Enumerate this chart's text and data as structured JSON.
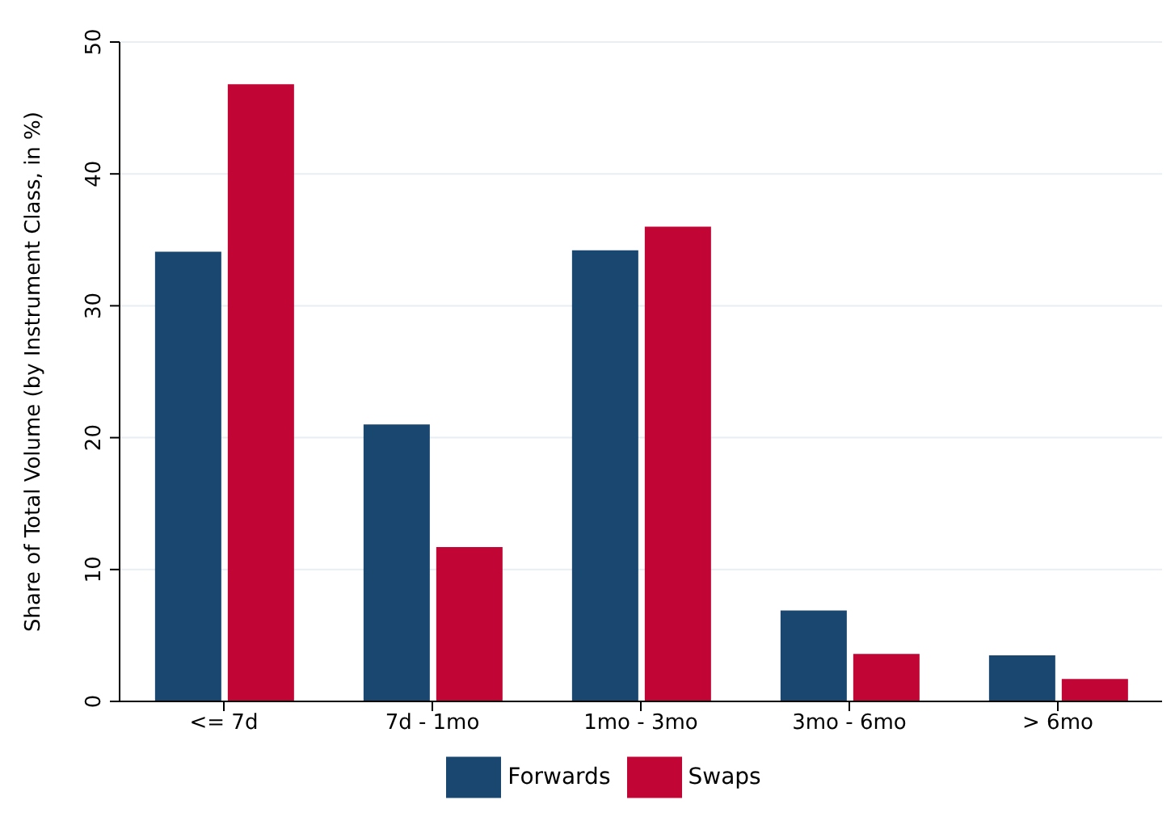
{
  "chart_data": {
    "type": "bar",
    "ylabel": "Share of Total Volume (by Instrument Class, in %)",
    "categories": [
      "<= 7d",
      "7d - 1mo",
      "1mo - 3mo",
      "3mo - 6mo",
      "> 6mo"
    ],
    "series": [
      {
        "name": "Forwards",
        "color": "#1a476f",
        "values": [
          34.1,
          21.0,
          34.2,
          6.9,
          3.5
        ]
      },
      {
        "name": "Swaps",
        "color": "#c10534",
        "values": [
          46.8,
          11.7,
          36.0,
          3.6,
          1.7
        ]
      }
    ],
    "ylim": [
      0,
      50
    ],
    "yticks": [
      0,
      10,
      20,
      30,
      40,
      50
    ],
    "grid": "y",
    "legend": "bottom"
  }
}
